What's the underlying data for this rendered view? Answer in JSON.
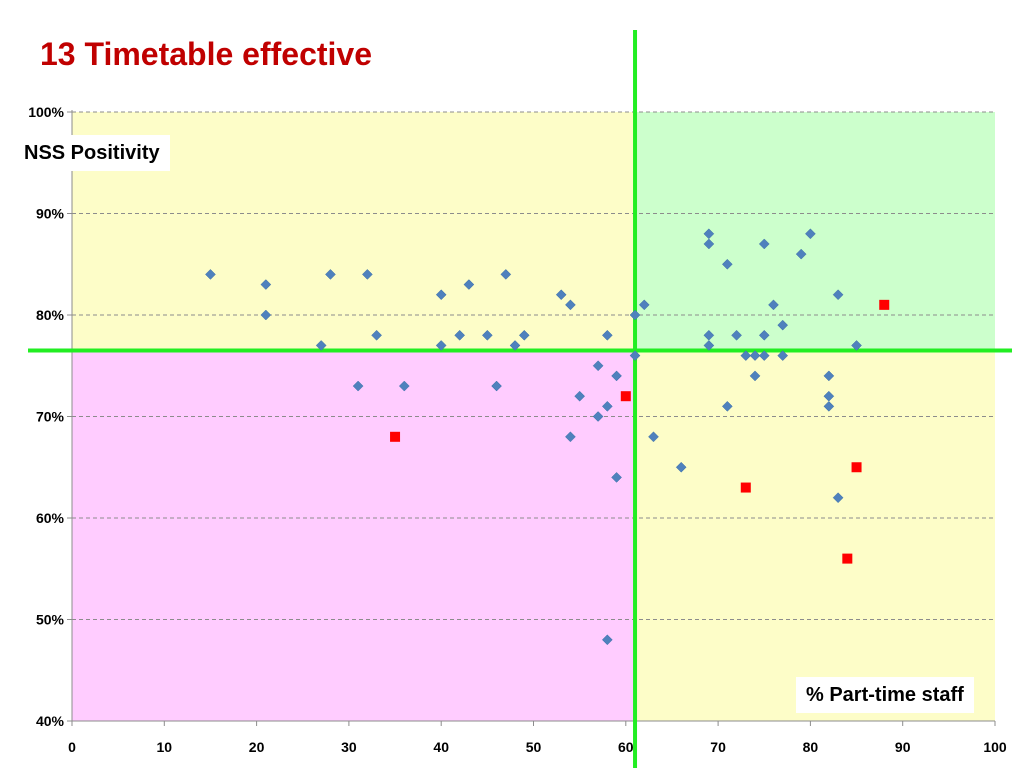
{
  "page": {
    "title": "13 Timetable effective"
  },
  "chart_data": {
    "type": "scatter",
    "title": "13 Timetable effective",
    "xlabel": "% Part-time staff",
    "ylabel": "NSS Positivity",
    "xlim": [
      0,
      100
    ],
    "ylim": [
      40,
      100
    ],
    "x_ticks": [
      0,
      10,
      20,
      30,
      40,
      50,
      60,
      70,
      80,
      90,
      100
    ],
    "y_ticks": [
      40,
      50,
      60,
      70,
      80,
      90,
      100
    ],
    "y_tick_format": "percent",
    "grid": "horizontal dashed",
    "divider": {
      "x": 61,
      "y": 76.5,
      "color": "#22ee22"
    },
    "quadrants": {
      "top_left": "#fdfdc8",
      "top_right": "#ccffcc",
      "bottom_left": "#ffccff",
      "bottom_right": "#fdfdc8"
    },
    "series": [
      {
        "marker": "diamond",
        "color": "#4f81bd",
        "points": [
          [
            15,
            84
          ],
          [
            21,
            83
          ],
          [
            21,
            80
          ],
          [
            27,
            77
          ],
          [
            28,
            84
          ],
          [
            31,
            73
          ],
          [
            32,
            84
          ],
          [
            33,
            78
          ],
          [
            36,
            73
          ],
          [
            40,
            82
          ],
          [
            40,
            77
          ],
          [
            42,
            78
          ],
          [
            43,
            83
          ],
          [
            45,
            78
          ],
          [
            46,
            73
          ],
          [
            47,
            84
          ],
          [
            48,
            77
          ],
          [
            49,
            78
          ],
          [
            53,
            82
          ],
          [
            54,
            81
          ],
          [
            54,
            68
          ],
          [
            55,
            72
          ],
          [
            57,
            75
          ],
          [
            57,
            70
          ],
          [
            58,
            78
          ],
          [
            58,
            71
          ],
          [
            58,
            48
          ],
          [
            59,
            74
          ],
          [
            59,
            64
          ],
          [
            61,
            80
          ],
          [
            61,
            76
          ],
          [
            62,
            81
          ],
          [
            63,
            68
          ],
          [
            66,
            65
          ],
          [
            69,
            88
          ],
          [
            69,
            87
          ],
          [
            69,
            78
          ],
          [
            69,
            77
          ],
          [
            71,
            85
          ],
          [
            71,
            71
          ],
          [
            72,
            78
          ],
          [
            73,
            76
          ],
          [
            74,
            76
          ],
          [
            74,
            74
          ],
          [
            75,
            87
          ],
          [
            75,
            78
          ],
          [
            75,
            76
          ],
          [
            76,
            81
          ],
          [
            77,
            79
          ],
          [
            77,
            76
          ],
          [
            79,
            86
          ],
          [
            80,
            88
          ],
          [
            82,
            74
          ],
          [
            82,
            72
          ],
          [
            82,
            71
          ],
          [
            83,
            82
          ],
          [
            83,
            62
          ],
          [
            85,
            77
          ]
        ]
      },
      {
        "marker": "square",
        "color": "#ff0000",
        "points": [
          [
            35,
            68
          ],
          [
            60,
            72
          ],
          [
            73,
            63
          ],
          [
            84,
            56
          ],
          [
            85,
            65
          ],
          [
            88,
            81
          ]
        ]
      }
    ]
  }
}
